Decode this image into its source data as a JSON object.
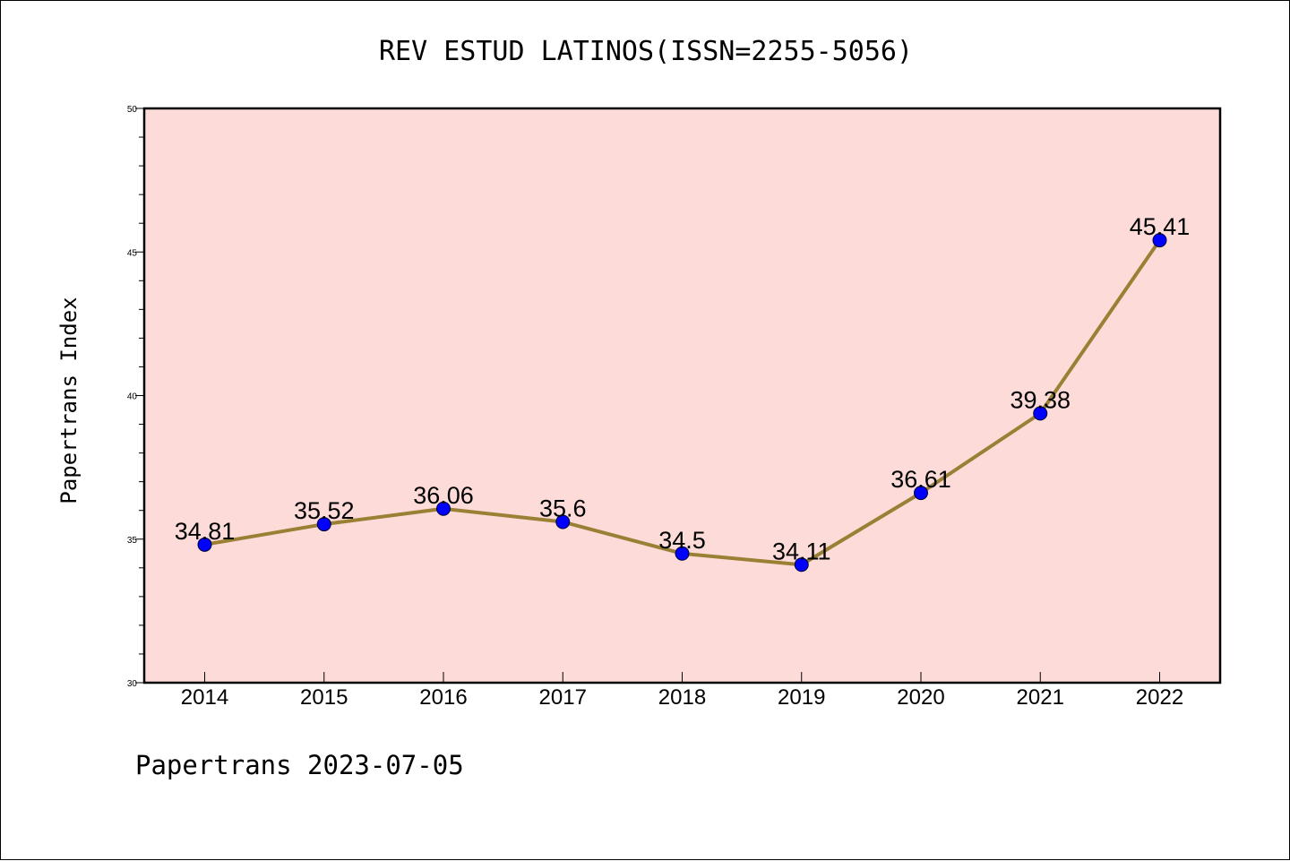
{
  "chart_data": {
    "type": "line",
    "title": "REV ESTUD LATINOS(ISSN=2255-5056)",
    "ylabel": "Papertrans Index",
    "xlabel": "",
    "categories": [
      "2014",
      "2015",
      "2016",
      "2017",
      "2018",
      "2019",
      "2020",
      "2021",
      "2022"
    ],
    "series": [
      {
        "values": [
          34.81,
          35.52,
          36.06,
          35.6,
          34.5,
          34.11,
          36.61,
          39.38,
          45.41
        ],
        "labels": [
          "34.81",
          "35.52",
          "36.06",
          "35.6",
          "34.5",
          "34.11",
          "36.61",
          "39.38",
          "45.41"
        ]
      }
    ],
    "ylim": [
      30,
      50
    ],
    "yticks": [
      "30",
      "35",
      "40",
      "45",
      "50"
    ],
    "grid": false,
    "colors": {
      "plot_background": "#fddbd8",
      "line": "#9a8035",
      "marker": "#0000ff"
    }
  },
  "footer": {
    "text": "Papertrans 2023-07-05"
  }
}
